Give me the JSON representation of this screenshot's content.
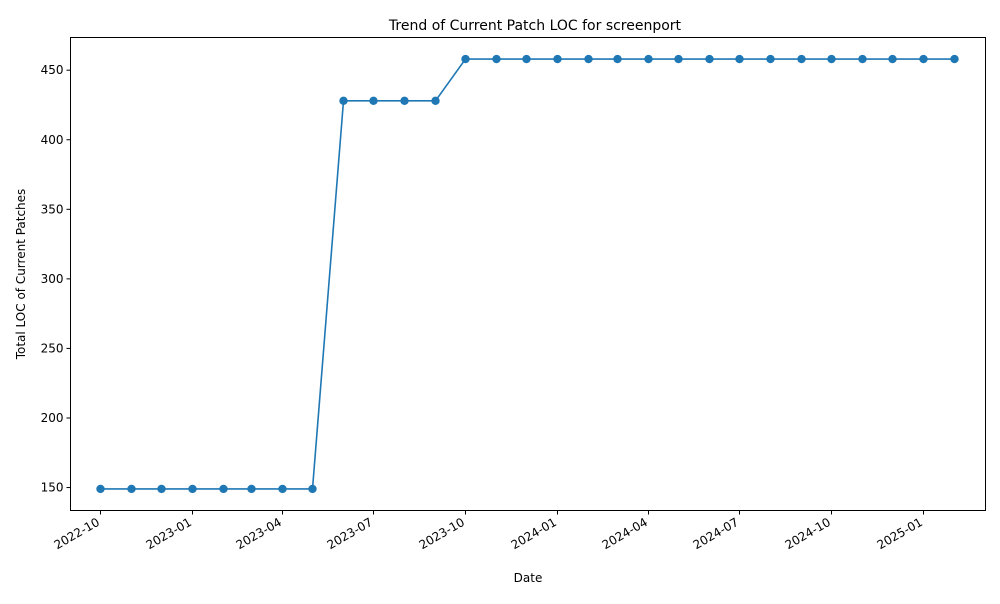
{
  "chart_data": {
    "type": "line",
    "title": "Trend of Current Patch LOC for screenport",
    "xlabel": "Date",
    "ylabel": "Total LOC of Current Patches",
    "x_ticks": [
      "2022-10-01",
      "2023-01-01",
      "2023-04-01",
      "2023-07-01",
      "2023-10-01",
      "2024-01-01",
      "2024-04-01",
      "2024-07-01",
      "2024-10-01",
      "2025-01-01"
    ],
    "x_tick_labels": [
      "2022-10",
      "2023-01",
      "2023-04",
      "2023-07",
      "2023-10",
      "2024-01",
      "2024-04",
      "2024-07",
      "2024-10",
      "2025-01"
    ],
    "y_ticks": [
      150,
      200,
      250,
      300,
      350,
      400,
      450
    ],
    "xlim": [
      "2022-09-01",
      "2025-03-04"
    ],
    "ylim": [
      133.5,
      473.5
    ],
    "grid": false,
    "color": "#1f77b4",
    "series": [
      {
        "x": [
          "2022-10-01",
          "2022-11-01",
          "2022-12-01",
          "2023-01-01",
          "2023-02-01",
          "2023-03-01",
          "2023-04-01",
          "2023-05-01",
          "2023-06-01",
          "2023-07-01",
          "2023-08-01",
          "2023-09-01",
          "2023-10-01",
          "2023-11-01",
          "2023-12-01",
          "2024-01-01",
          "2024-02-01",
          "2024-03-01",
          "2024-04-01",
          "2024-05-01",
          "2024-06-01",
          "2024-07-01",
          "2024-08-01",
          "2024-09-01",
          "2024-10-01",
          "2024-11-01",
          "2024-12-01",
          "2025-01-01",
          "2025-02-01"
        ],
        "values": [
          149,
          149,
          149,
          149,
          149,
          149,
          149,
          149,
          428,
          428,
          428,
          428,
          458,
          458,
          458,
          458,
          458,
          458,
          458,
          458,
          458,
          458,
          458,
          458,
          458,
          458,
          458,
          458,
          458
        ]
      }
    ]
  }
}
